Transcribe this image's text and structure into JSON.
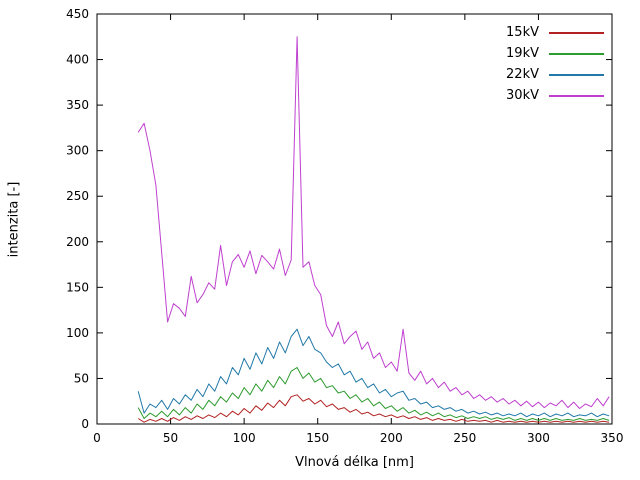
{
  "chart_data": {
    "type": "line",
    "title": "",
    "xlabel": "Vlnová délka [nm]",
    "ylabel": "intenzita [-]",
    "xlim": [
      0,
      350
    ],
    "ylim": [
      0,
      450
    ],
    "xticks": [
      0,
      50,
      100,
      150,
      200,
      250,
      300,
      350
    ],
    "yticks": [
      0,
      50,
      100,
      150,
      200,
      250,
      300,
      350,
      400,
      450
    ],
    "grid": false,
    "legend_position": "top-right-inside",
    "x": [
      28,
      32,
      36,
      40,
      44,
      48,
      52,
      56,
      60,
      64,
      68,
      72,
      76,
      80,
      84,
      88,
      92,
      96,
      100,
      104,
      108,
      112,
      116,
      120,
      124,
      128,
      132,
      136,
      140,
      144,
      148,
      152,
      156,
      160,
      164,
      168,
      172,
      176,
      180,
      184,
      188,
      192,
      196,
      200,
      204,
      208,
      212,
      216,
      220,
      224,
      228,
      232,
      236,
      240,
      244,
      248,
      252,
      256,
      260,
      264,
      268,
      272,
      276,
      280,
      284,
      288,
      292,
      296,
      300,
      304,
      308,
      312,
      316,
      320,
      324,
      328,
      332,
      336,
      340,
      344,
      348
    ],
    "series": [
      {
        "name": "15kV",
        "color": "#b22222",
        "values": [
          6,
          2,
          5,
          3,
          6,
          3,
          7,
          4,
          8,
          5,
          9,
          6,
          10,
          7,
          12,
          8,
          14,
          10,
          17,
          12,
          20,
          15,
          23,
          18,
          26,
          20,
          30,
          32,
          25,
          28,
          22,
          26,
          19,
          22,
          16,
          18,
          13,
          16,
          11,
          13,
          9,
          11,
          8,
          10,
          7,
          9,
          6,
          8,
          5,
          7,
          4,
          6,
          4,
          5,
          3,
          5,
          3,
          4,
          3,
          4,
          2,
          4,
          2,
          3,
          2,
          3,
          2,
          3,
          2,
          3,
          2,
          3,
          2,
          3,
          2,
          3,
          2,
          3,
          2,
          3,
          2
        ]
      },
      {
        "name": "19kV",
        "color": "#2e9b2e",
        "values": [
          18,
          6,
          12,
          8,
          14,
          8,
          16,
          10,
          18,
          12,
          22,
          16,
          26,
          20,
          30,
          24,
          34,
          28,
          40,
          32,
          44,
          36,
          48,
          40,
          52,
          44,
          58,
          62,
          50,
          56,
          46,
          50,
          40,
          42,
          34,
          36,
          28,
          32,
          24,
          28,
          20,
          24,
          17,
          20,
          14,
          18,
          12,
          15,
          10,
          13,
          9,
          12,
          8,
          10,
          7,
          9,
          6,
          8,
          6,
          8,
          5,
          7,
          5,
          7,
          4,
          6,
          4,
          6,
          4,
          6,
          4,
          6,
          4,
          5,
          4,
          6,
          4,
          5,
          4,
          6,
          4
        ]
      },
      {
        "name": "22kV",
        "color": "#2279a8",
        "values": [
          36,
          12,
          22,
          18,
          26,
          16,
          28,
          22,
          32,
          26,
          38,
          30,
          44,
          36,
          52,
          44,
          62,
          54,
          72,
          60,
          78,
          66,
          84,
          72,
          90,
          78,
          96,
          104,
          86,
          96,
          82,
          78,
          68,
          62,
          66,
          54,
          58,
          46,
          50,
          40,
          44,
          34,
          38,
          30,
          34,
          36,
          26,
          28,
          22,
          24,
          18,
          20,
          16,
          18,
          14,
          16,
          12,
          14,
          11,
          13,
          10,
          12,
          9,
          11,
          9,
          12,
          8,
          11,
          9,
          12,
          8,
          11,
          9,
          12,
          8,
          10,
          9,
          12,
          8,
          11,
          9
        ]
      },
      {
        "name": "30kV",
        "color": "#bf40cf",
        "values": [
          320,
          330,
          300,
          262,
          188,
          112,
          132,
          127,
          118,
          162,
          133,
          142,
          155,
          148,
          196,
          152,
          178,
          186,
          172,
          190,
          165,
          185,
          178,
          170,
          192,
          163,
          180,
          425,
          172,
          178,
          152,
          142,
          108,
          96,
          112,
          88,
          96,
          102,
          82,
          90,
          72,
          78,
          62,
          68,
          58,
          104,
          56,
          48,
          58,
          44,
          50,
          40,
          46,
          36,
          40,
          32,
          36,
          28,
          32,
          26,
          30,
          24,
          28,
          22,
          26,
          20,
          25,
          19,
          24,
          18,
          23,
          20,
          26,
          18,
          24,
          17,
          22,
          19,
          28,
          20,
          30
        ]
      }
    ]
  }
}
